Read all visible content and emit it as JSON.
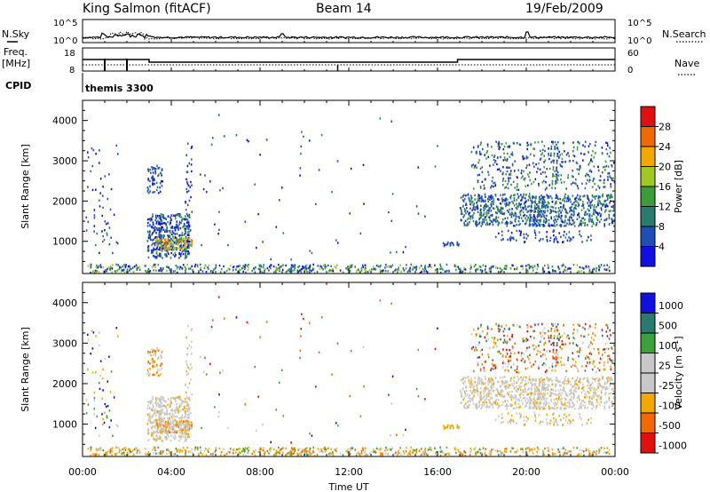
{
  "header": {
    "station": "King Salmon (fitACF)",
    "beam": "Beam 14",
    "date": "19/Feb/2009"
  },
  "top_panel": {
    "left_label_top": "N.Sky",
    "left_label_mid": "Freq.",
    "left_label_unit": "[MHz]",
    "left_label_cpid": "CPID",
    "right_label_top": "N.Search",
    "right_label_mid": "Nave",
    "nsky_ticks": [
      "10^5",
      "10^0"
    ],
    "nsearch_ticks": [
      "10^5",
      "10^0"
    ],
    "freq_ticks": [
      "18",
      "8"
    ],
    "nave_ticks": [
      "60",
      "0"
    ],
    "cpid_text": "themis 3300"
  },
  "colors": {
    "power_scale": [
      "#1010e0",
      "#1f4fb4",
      "#2a7a70",
      "#3c9c3c",
      "#a0c820",
      "#f2a800",
      "#f06a00",
      "#e01010"
    ],
    "velocity_scale": [
      "#e01010",
      "#f06a00",
      "#f2a800",
      "#c8c8c8",
      "#c8c8c8",
      "#3ca03c",
      "#2a7a70",
      "#1010e0"
    ]
  },
  "chart_data": [
    {
      "type": "heatmap",
      "title": "",
      "xlabel": "",
      "ylabel": "Slant Range [km]",
      "xlim": [
        "00:00",
        "24:00"
      ],
      "ylim": [
        200,
        4500
      ],
      "yticks": [
        "1000",
        "2000",
        "3000",
        "4000"
      ],
      "colorbar_label": "Power [dB]",
      "colorbar_ticks": [
        "4",
        "8",
        "12",
        "16",
        "20",
        "24",
        "28"
      ],
      "colorbar_range": [
        0,
        30
      ]
    },
    {
      "type": "heatmap",
      "title": "",
      "xlabel": "Time UT",
      "ylabel": "Slant Range [km]",
      "xlim": [
        "00:00",
        "24:00"
      ],
      "ylim": [
        200,
        4500
      ],
      "xticks": [
        "00:00",
        "04:00",
        "08:00",
        "12:00",
        "16:00",
        "20:00",
        "00:00"
      ],
      "yticks": [
        "1000",
        "2000",
        "3000",
        "4000"
      ],
      "colorbar_label": "Velocity [m s^-1]",
      "colorbar_ticks": [
        "1000",
        "500",
        "100",
        "25",
        "-25",
        "-100",
        "-500",
        "-1000"
      ],
      "colorbar_range": [
        -1000,
        1000
      ]
    }
  ]
}
